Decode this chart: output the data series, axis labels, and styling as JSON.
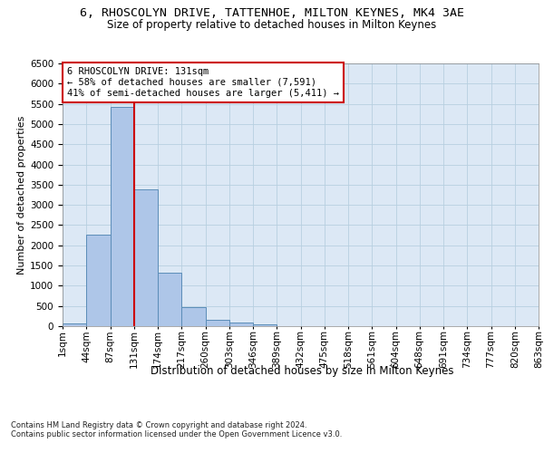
{
  "title1": "6, RHOSCOLYN DRIVE, TATTENHOE, MILTON KEYNES, MK4 3AE",
  "title2": "Size of property relative to detached houses in Milton Keynes",
  "xlabel": "Distribution of detached houses by size in Milton Keynes",
  "ylabel": "Number of detached properties",
  "footnote": "Contains HM Land Registry data © Crown copyright and database right 2024.\nContains public sector information licensed under the Open Government Licence v3.0.",
  "bar_values": [
    70,
    2270,
    5430,
    3380,
    1320,
    470,
    155,
    80,
    55,
    0,
    0,
    0,
    0,
    0,
    0,
    0,
    0,
    0,
    0,
    0
  ],
  "x_labels": [
    "1sqm",
    "44sqm",
    "87sqm",
    "131sqm",
    "174sqm",
    "217sqm",
    "260sqm",
    "303sqm",
    "346sqm",
    "389sqm",
    "432sqm",
    "475sqm",
    "518sqm",
    "561sqm",
    "604sqm",
    "648sqm",
    "691sqm",
    "734sqm",
    "777sqm",
    "820sqm",
    "863sqm"
  ],
  "bar_color": "#aec6e8",
  "bar_edge_color": "#5b8db8",
  "vline_color": "#cc0000",
  "annotation_text": "6 RHOSCOLYN DRIVE: 131sqm\n← 58% of detached houses are smaller (7,591)\n41% of semi-detached houses are larger (5,411) →",
  "annotation_box_color": "#ffffff",
  "annotation_box_edge_color": "#cc0000",
  "ylim": [
    0,
    6500
  ],
  "yticks": [
    0,
    500,
    1000,
    1500,
    2000,
    2500,
    3000,
    3500,
    4000,
    4500,
    5000,
    5500,
    6000,
    6500
  ],
  "bg_color": "#ffffff",
  "axes_bg_color": "#dce8f5",
  "grid_color": "#b8cfe0",
  "title1_fontsize": 9.5,
  "title2_fontsize": 8.5,
  "xlabel_fontsize": 8.5,
  "ylabel_fontsize": 8,
  "tick_fontsize": 7.5,
  "annot_fontsize": 7.5,
  "footnote_fontsize": 6
}
